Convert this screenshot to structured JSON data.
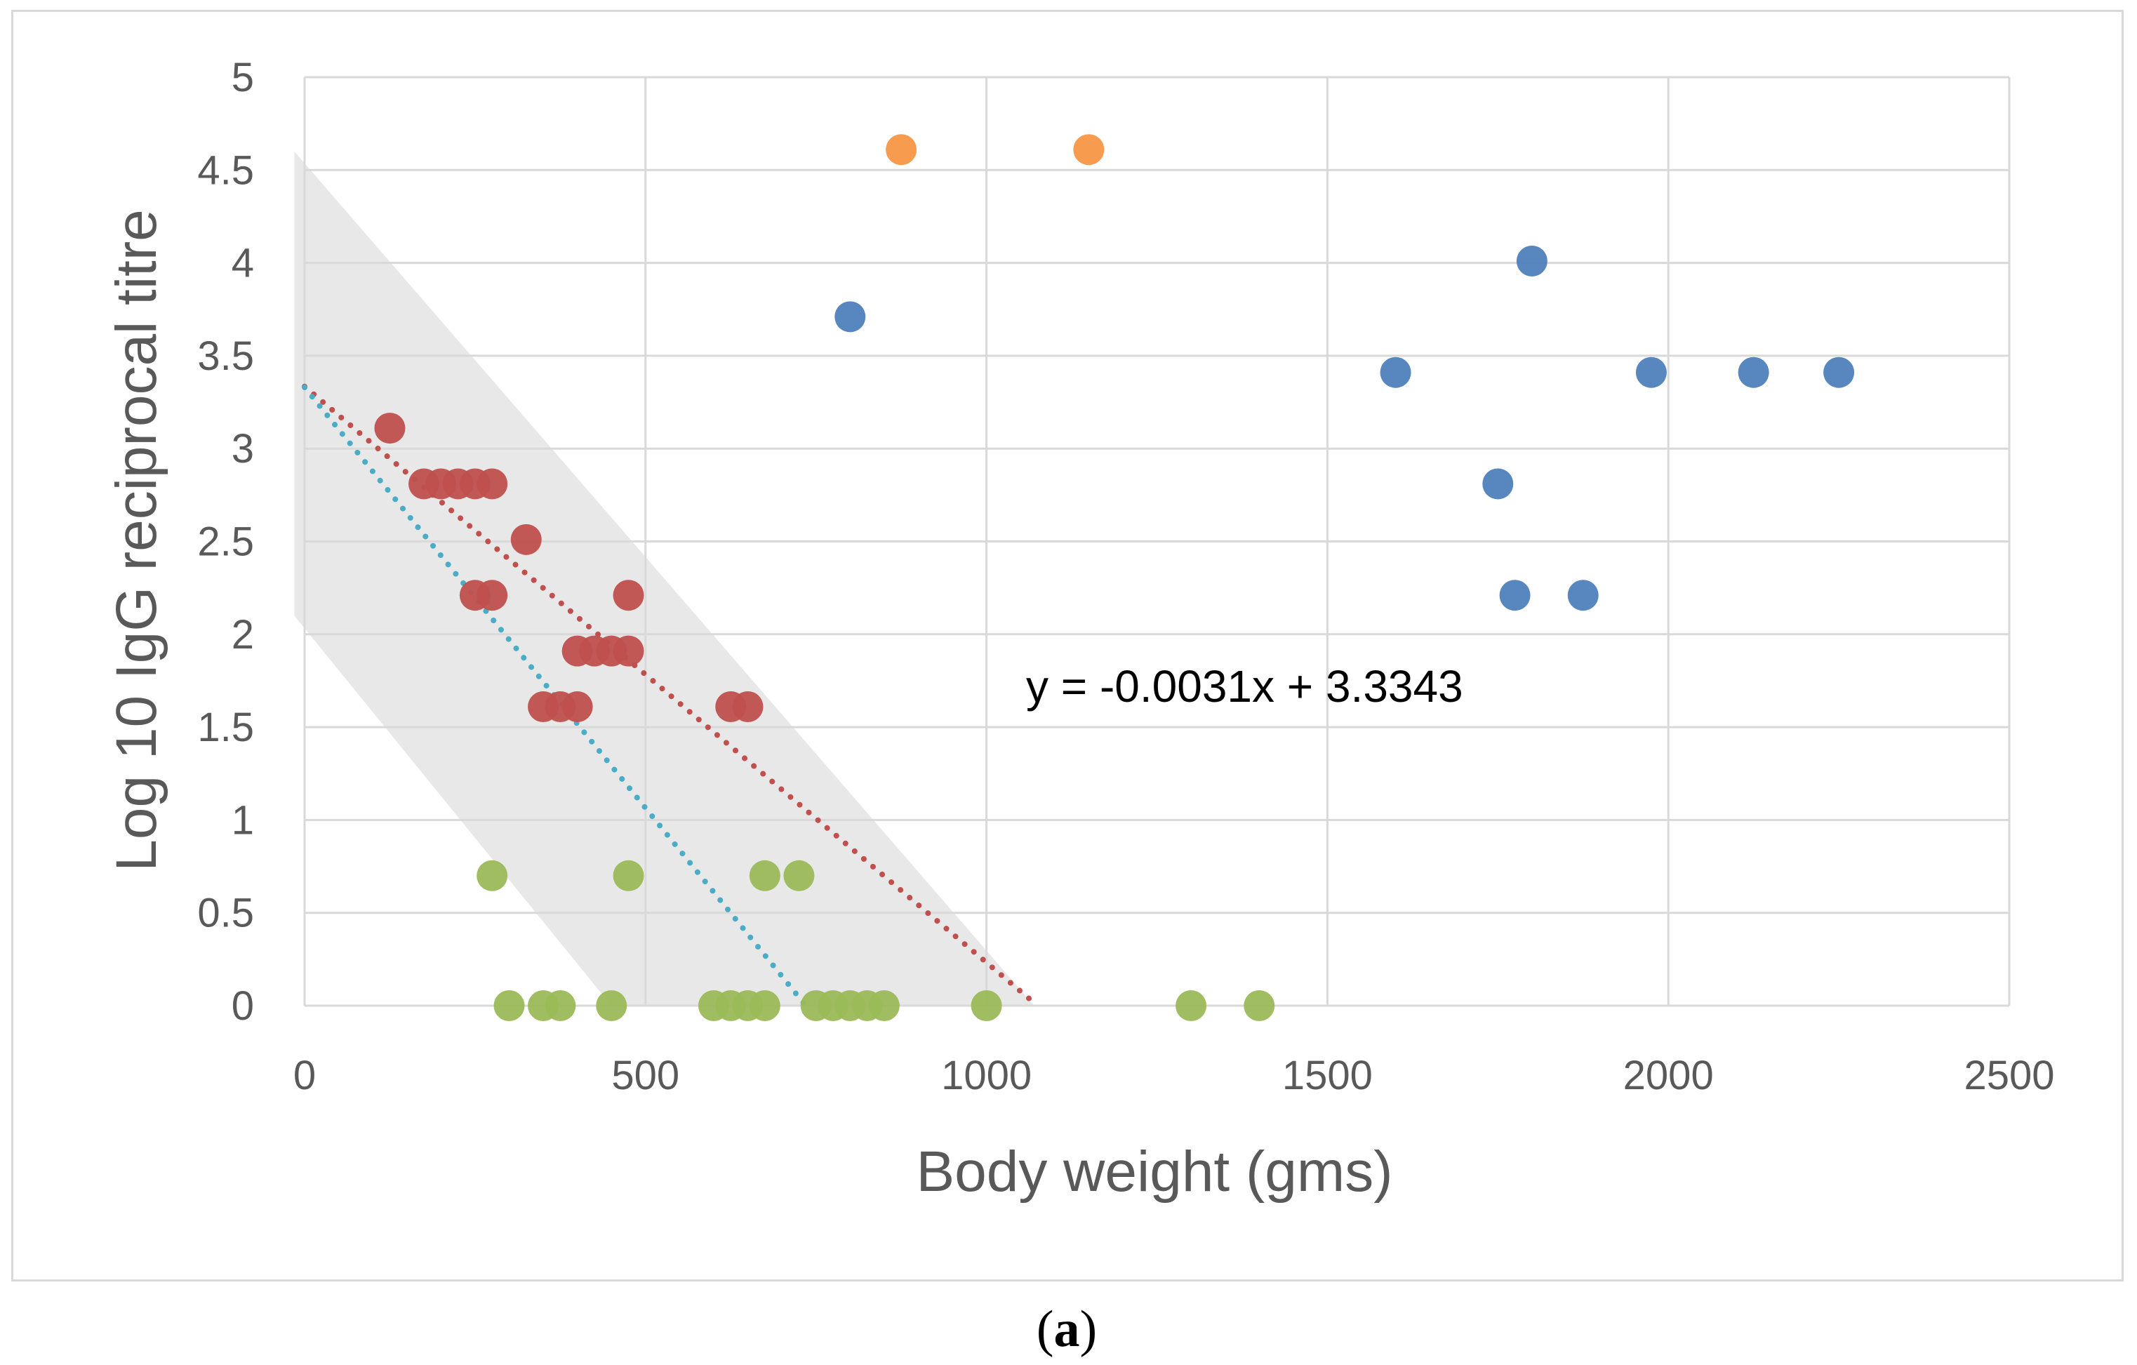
{
  "chart_data": {
    "type": "scatter",
    "title": "",
    "xlabel": "Body weight (gms)",
    "ylabel": "Log 10 IgG reciprocal titre",
    "xlim": [
      0,
      2500
    ],
    "ylim": [
      0,
      5
    ],
    "xticks": [
      "0",
      "500",
      "1000",
      "1500",
      "2000",
      "2500"
    ],
    "yticks": [
      "0",
      "0.5",
      "1",
      "1.5",
      "2",
      "2.5",
      "3",
      "3.5",
      "4",
      "4.5",
      "5"
    ],
    "grid": true,
    "legend": "none",
    "annotation": "y = -0.0031x + 3.3343",
    "caption_prefix": "(",
    "caption_bold": "a",
    "caption_suffix": ")",
    "band": {
      "color": "#d9d9d9",
      "polygon": [
        [
          -15,
          4.6
        ],
        [
          -15,
          2.1
        ],
        [
          450,
          0
        ],
        [
          1070,
          0
        ]
      ]
    },
    "trendlines": [
      {
        "name": "red-trend",
        "color": "#c0504d",
        "x": [
          0,
          1075
        ],
        "y": [
          3.3343,
          0
        ]
      },
      {
        "name": "blue-trend",
        "color": "#4bacc6",
        "x": [
          0,
          735
        ],
        "y": [
          3.33,
          0
        ]
      }
    ],
    "series": [
      {
        "name": "orange",
        "color": "#f79646",
        "points": [
          [
            875,
            4.61
          ],
          [
            1150,
            4.61
          ]
        ]
      },
      {
        "name": "blue",
        "color": "#4f81bd",
        "points": [
          [
            800,
            3.71
          ],
          [
            1600,
            3.41
          ],
          [
            1800,
            4.01
          ],
          [
            1975,
            3.41
          ],
          [
            2125,
            3.41
          ],
          [
            2250,
            3.41
          ],
          [
            1750,
            2.81
          ],
          [
            1775,
            2.21
          ],
          [
            1875,
            2.21
          ]
        ]
      },
      {
        "name": "red",
        "color": "#c0504d",
        "points": [
          [
            125,
            3.11
          ],
          [
            175,
            2.81
          ],
          [
            200,
            2.81
          ],
          [
            225,
            2.81
          ],
          [
            250,
            2.81
          ],
          [
            275,
            2.81
          ],
          [
            325,
            2.51
          ],
          [
            250,
            2.21
          ],
          [
            275,
            2.21
          ],
          [
            475,
            2.21
          ],
          [
            400,
            1.91
          ],
          [
            425,
            1.91
          ],
          [
            450,
            1.91
          ],
          [
            475,
            1.91
          ],
          [
            350,
            1.61
          ],
          [
            375,
            1.61
          ],
          [
            400,
            1.61
          ],
          [
            625,
            1.61
          ],
          [
            650,
            1.61
          ]
        ]
      },
      {
        "name": "green",
        "color": "#9bbb59",
        "points": [
          [
            275,
            0.7
          ],
          [
            475,
            0.7
          ],
          [
            675,
            0.7
          ],
          [
            725,
            0.7
          ],
          [
            300,
            0
          ],
          [
            350,
            0
          ],
          [
            375,
            0
          ],
          [
            450,
            0
          ],
          [
            600,
            0
          ],
          [
            625,
            0
          ],
          [
            650,
            0
          ],
          [
            675,
            0
          ],
          [
            750,
            0
          ],
          [
            775,
            0
          ],
          [
            800,
            0
          ],
          [
            825,
            0
          ],
          [
            850,
            0
          ],
          [
            1000,
            0
          ],
          [
            1300,
            0
          ],
          [
            1400,
            0
          ]
        ]
      }
    ]
  }
}
